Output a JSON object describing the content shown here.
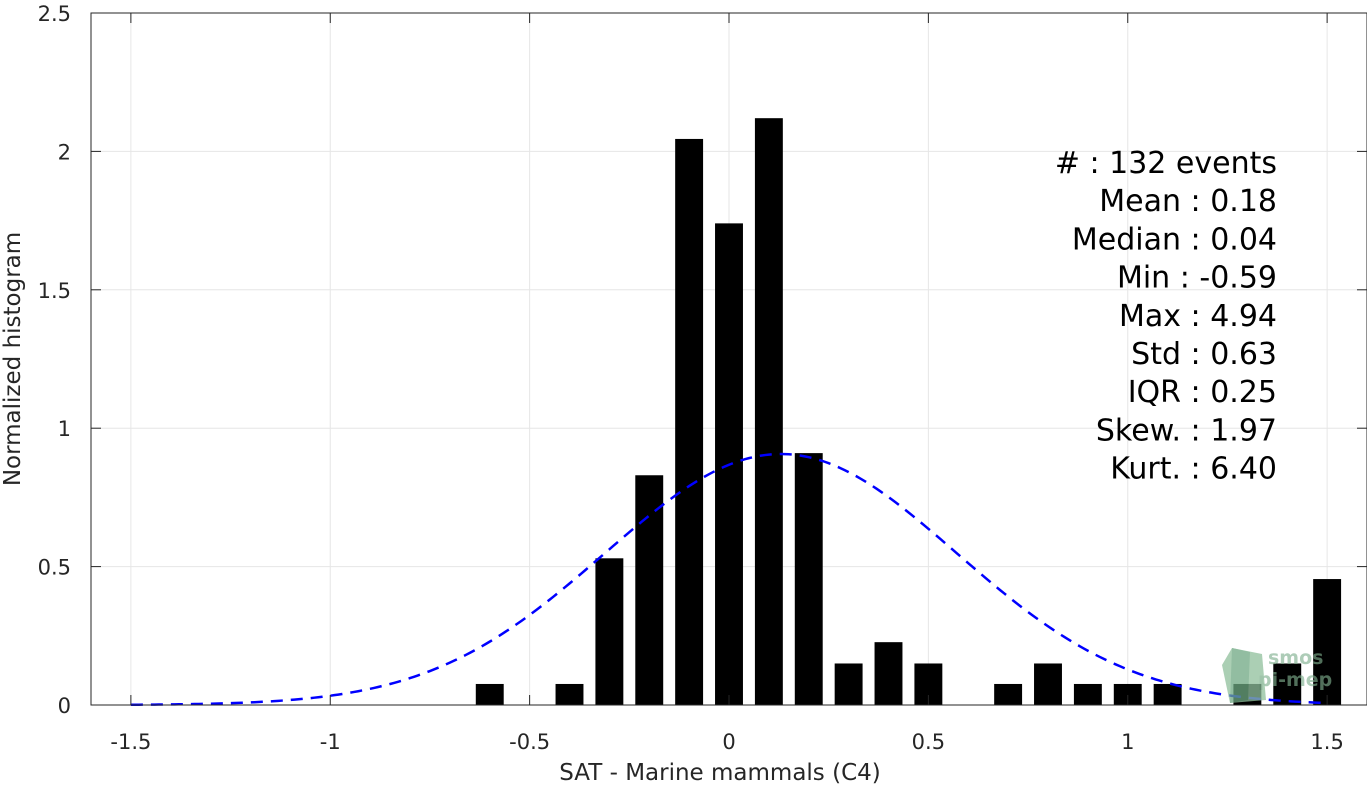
{
  "chart_data": {
    "type": "bar",
    "xlabel": "SAT - Marine mammals (C4)",
    "ylabel": "Normalized histogram",
    "xlim": [
      -1.6,
      1.6
    ],
    "ylim": [
      0,
      2.5
    ],
    "xticks": [
      -1.5,
      -1,
      -0.5,
      0,
      0.5,
      1,
      1.5
    ],
    "xtick_labels": [
      "-1.5",
      "-1",
      "-0.5",
      "0",
      "0.5",
      "1",
      "1.5"
    ],
    "yticks": [
      0,
      0.5,
      1,
      1.5,
      2,
      2.5
    ],
    "ytick_labels": [
      "0",
      "0.5",
      "1",
      "1.5",
      "2",
      "2.5"
    ],
    "grid": true,
    "bar_width": 0.07,
    "bar_color": "#000000",
    "x": [
      -0.6,
      -0.4,
      -0.3,
      -0.2,
      -0.1,
      0.0,
      0.1,
      0.2,
      0.3,
      0.4,
      0.5,
      0.7,
      0.8,
      0.9,
      1.0,
      1.1,
      1.3,
      1.4,
      1.5
    ],
    "values": [
      0.076,
      0.076,
      0.53,
      0.83,
      2.045,
      1.74,
      2.12,
      0.91,
      0.15,
      0.227,
      0.15,
      0.076,
      0.15,
      0.076,
      0.076,
      0.076,
      0.076,
      0.15,
      0.455
    ],
    "normal_fit": {
      "mean": 0.13,
      "std": 0.44,
      "color": "#0000ff",
      "style": "dashed"
    },
    "stats": [
      {
        "label": "#  : 132 events"
      },
      {
        "label": "Mean : 0.18"
      },
      {
        "label": "Median : 0.04"
      },
      {
        "label": "Min : -0.59"
      },
      {
        "label": "Max : 4.94"
      },
      {
        "label": "Std : 0.63"
      },
      {
        "label": "IQR : 0.25"
      },
      {
        "label": "Skew. : 1.97"
      },
      {
        "label": "Kurt. : 6.40"
      }
    ]
  },
  "watermark": {
    "line1": "smos",
    "line2": "pi-mep"
  }
}
